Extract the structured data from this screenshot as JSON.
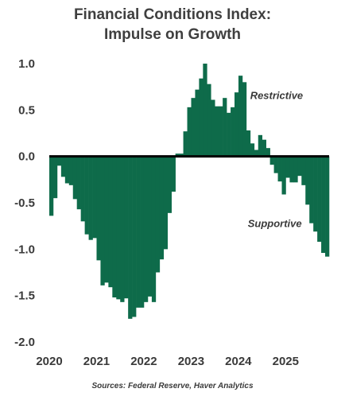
{
  "title_line1": "Financial Conditions Index:",
  "title_line2": "Impulse on Growth",
  "source": "Sources: Federal Reserve, Haver Analytics",
  "chart_data": {
    "type": "bar",
    "title": "Financial Conditions Index: Impulse on Growth",
    "xlabel": "",
    "ylabel": "",
    "ylim": [
      -2.0,
      1.0
    ],
    "yticks": [
      1.0,
      0.5,
      0.0,
      -0.5,
      -1.0,
      -1.5,
      -2.0
    ],
    "ytick_labels": [
      "1.0",
      "0.5",
      "0.0",
      "-0.5",
      "-1.0",
      "-1.5",
      "-2.0"
    ],
    "xlim": [
      2020.0,
      2025.92
    ],
    "xticks": [
      2020,
      2021,
      2022,
      2023,
      2024,
      2025
    ],
    "xtick_labels": [
      "2020",
      "2021",
      "2022",
      "2023",
      "2024",
      "2025"
    ],
    "bar_color": "#0e6b4a",
    "zero_line_color": "#000000",
    "annotations": [
      {
        "text": "Restrictive",
        "x": 2024.25,
        "y": 0.62
      },
      {
        "text": "Supportive",
        "x": 2024.2,
        "y": -0.76
      }
    ],
    "x": [
      "2020-01",
      "2020-02",
      "2020-03",
      "2020-04",
      "2020-05",
      "2020-06",
      "2020-07",
      "2020-08",
      "2020-09",
      "2020-10",
      "2020-11",
      "2020-12",
      "2021-01",
      "2021-02",
      "2021-03",
      "2021-04",
      "2021-05",
      "2021-06",
      "2021-07",
      "2021-08",
      "2021-09",
      "2021-10",
      "2021-11",
      "2021-12",
      "2022-01",
      "2022-02",
      "2022-03",
      "2022-04",
      "2022-05",
      "2022-06",
      "2022-07",
      "2022-08",
      "2022-09",
      "2022-10",
      "2022-11",
      "2022-12",
      "2023-01",
      "2023-02",
      "2023-03",
      "2023-04",
      "2023-05",
      "2023-06",
      "2023-07",
      "2023-08",
      "2023-09",
      "2023-10",
      "2023-11",
      "2023-12",
      "2024-01",
      "2024-02",
      "2024-03",
      "2024-04",
      "2024-05",
      "2024-06",
      "2024-07",
      "2024-08",
      "2024-09",
      "2024-10",
      "2024-11",
      "2024-12",
      "2025-01",
      "2025-02",
      "2025-03",
      "2025-04",
      "2025-05",
      "2025-06",
      "2025-07",
      "2025-08",
      "2025-09",
      "2025-10",
      "2025-11"
    ],
    "values": [
      -0.64,
      -0.45,
      -0.1,
      -0.22,
      -0.29,
      -0.31,
      -0.46,
      -0.57,
      -0.7,
      -0.84,
      -0.9,
      -0.88,
      -1.12,
      -1.39,
      -1.36,
      -1.41,
      -1.52,
      -1.54,
      -1.57,
      -1.53,
      -1.75,
      -1.73,
      -1.63,
      -1.63,
      -1.57,
      -1.51,
      -1.57,
      -1.25,
      -1.11,
      -1.0,
      -0.61,
      -0.38,
      0.03,
      0.03,
      0.27,
      0.53,
      0.63,
      0.72,
      0.84,
      1.0,
      0.78,
      0.61,
      0.54,
      0.54,
      0.63,
      0.47,
      0.53,
      0.69,
      0.87,
      0.8,
      0.28,
      0.14,
      0.07,
      0.23,
      0.18,
      0.09,
      -0.09,
      -0.18,
      -0.27,
      -0.41,
      -0.23,
      -0.28,
      -0.28,
      -0.21,
      -0.31,
      -0.52,
      -0.72,
      -0.81,
      -0.92,
      -1.04,
      -1.08
    ]
  }
}
